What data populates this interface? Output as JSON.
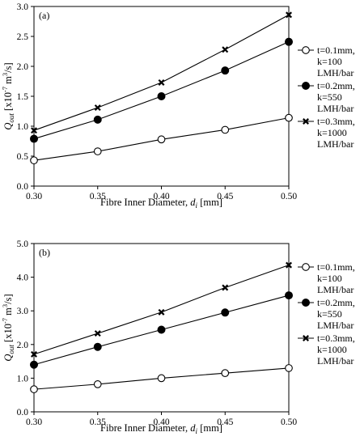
{
  "chart_data": [
    {
      "type": "line",
      "panel_label": "(a)",
      "x": [
        0.3,
        0.35,
        0.4,
        0.45,
        0.5
      ],
      "xticks": [
        "0.30",
        "0.35",
        "0.40",
        "0.45",
        "0.50"
      ],
      "yticks": [
        "0.0",
        "0.5",
        "1.0",
        "1.5",
        "2.0",
        "2.5",
        "3.0"
      ],
      "xlim": [
        0.3,
        0.5
      ],
      "ylim": [
        0.0,
        3.0
      ],
      "xlabel_main": "Fibre Inner Diameter, ",
      "xlabel_sym": "d",
      "xlabel_sub": "i",
      "xlabel_unit": " [mm]",
      "ylabel_sym": "Q",
      "ylabel_sub": "out",
      "ylabel_unit": " [x10",
      "ylabel_exp": "-7",
      "ylabel_unit2": " m",
      "ylabel_exp2": "3",
      "ylabel_unit3": "/s]",
      "legend_position": "right",
      "series": [
        {
          "name_lines": [
            "t=0.1mm,",
            "k=100",
            "LMH/bar"
          ],
          "marker": "open-circle",
          "values": [
            0.43,
            0.58,
            0.78,
            0.94,
            1.14
          ]
        },
        {
          "name_lines": [
            "t=0.2mm,",
            "k=550",
            "LMH/bar"
          ],
          "marker": "filled-circle",
          "values": [
            0.79,
            1.11,
            1.5,
            1.93,
            2.41
          ]
        },
        {
          "name_lines": [
            "t=0.3mm,",
            "k=1000",
            "LMH/bar"
          ],
          "marker": "x",
          "values": [
            0.93,
            1.31,
            1.73,
            2.28,
            2.86
          ]
        }
      ]
    },
    {
      "type": "line",
      "panel_label": "(b)",
      "x": [
        0.3,
        0.35,
        0.4,
        0.45,
        0.5
      ],
      "xticks": [
        "0.30",
        "0.35",
        "0.40",
        "0.45",
        "0.50"
      ],
      "yticks": [
        "0.0",
        "1.0",
        "2.0",
        "3.0",
        "4.0",
        "5.0"
      ],
      "xlim": [
        0.3,
        0.5
      ],
      "ylim": [
        0.0,
        5.0
      ],
      "xlabel_main": "Fibre Inner Diameter, ",
      "xlabel_sym": "d",
      "xlabel_sub": "i",
      "xlabel_unit": " [mm]",
      "ylabel_sym": "Q",
      "ylabel_sub": "out",
      "ylabel_unit": " [x10",
      "ylabel_exp": "-7",
      "ylabel_unit2": " m",
      "ylabel_exp2": "3",
      "ylabel_unit3": "/s]",
      "legend_position": "right",
      "series": [
        {
          "name_lines": [
            "t=0.1mm,",
            "k=100",
            "LMH/bar"
          ],
          "marker": "open-circle",
          "values": [
            0.67,
            0.82,
            1.0,
            1.15,
            1.3
          ]
        },
        {
          "name_lines": [
            "t=0.2mm,",
            "k=550",
            "LMH/bar"
          ],
          "marker": "filled-circle",
          "values": [
            1.4,
            1.93,
            2.44,
            2.95,
            3.46
          ]
        },
        {
          "name_lines": [
            "t=0.3mm,",
            "k=1000",
            "LMH/bar"
          ],
          "marker": "x",
          "values": [
            1.71,
            2.33,
            2.96,
            3.69,
            4.36
          ]
        }
      ]
    }
  ]
}
